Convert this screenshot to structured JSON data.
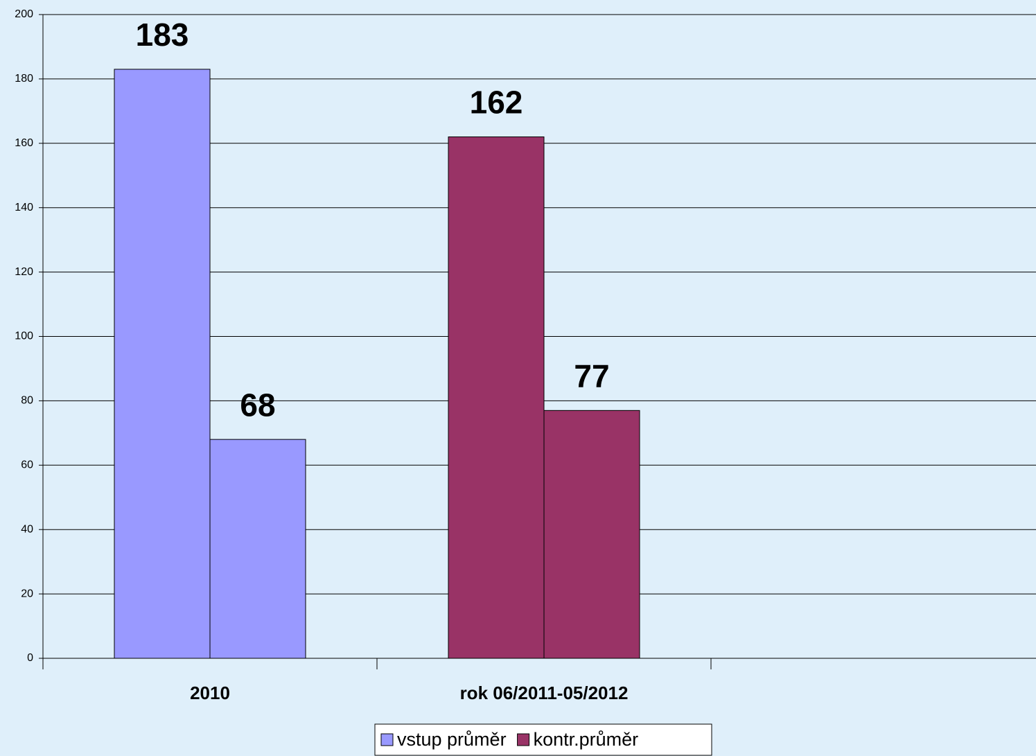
{
  "chart_data": {
    "type": "bar",
    "categories": [
      "2010",
      "rok 06/2011-05/2012",
      null
    ],
    "series": [
      {
        "name": "vstup průměr",
        "color": "#9999ff",
        "values": [
          183,
          162,
          null
        ]
      },
      {
        "name": "kontr.průměr",
        "color": "#993366",
        "values": [
          68,
          77,
          null
        ]
      }
    ],
    "category_colors": [
      "#9999ff",
      "#993366",
      null
    ],
    "ylim": [
      0,
      200
    ],
    "yticks": [
      0,
      20,
      40,
      60,
      80,
      100,
      120,
      140,
      160,
      180,
      200
    ],
    "grid": true,
    "legend": "bottom"
  }
}
